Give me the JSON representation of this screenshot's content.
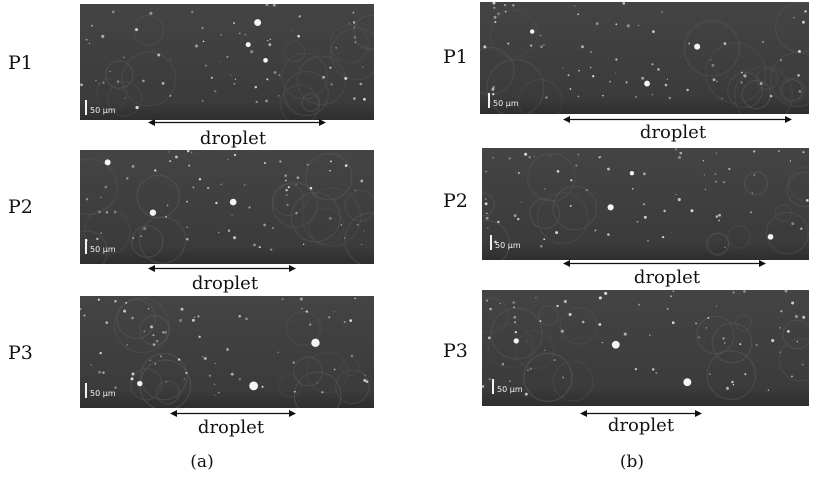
{
  "column_a": {
    "caption": "(a)",
    "panels": [
      {
        "row_label": "P1",
        "scale_label": "50 µm",
        "arrow_label": "droplet"
      },
      {
        "row_label": "P2",
        "scale_label": "50 µm",
        "arrow_label": "droplet"
      },
      {
        "row_label": "P3",
        "scale_label": "50 µm",
        "arrow_label": "droplet"
      }
    ]
  },
  "column_b": {
    "caption": "(b)",
    "panels": [
      {
        "row_label": "P1",
        "scale_label": "50 µm",
        "arrow_label": "droplet"
      },
      {
        "row_label": "P2",
        "scale_label": "50 µm",
        "arrow_label": "droplet"
      },
      {
        "row_label": "P3",
        "scale_label": "50 µm",
        "arrow_label": "droplet"
      }
    ]
  },
  "colors": {
    "image_background": "#3a3a3a",
    "particle": "#e8e8e8",
    "text": "#111111"
  }
}
